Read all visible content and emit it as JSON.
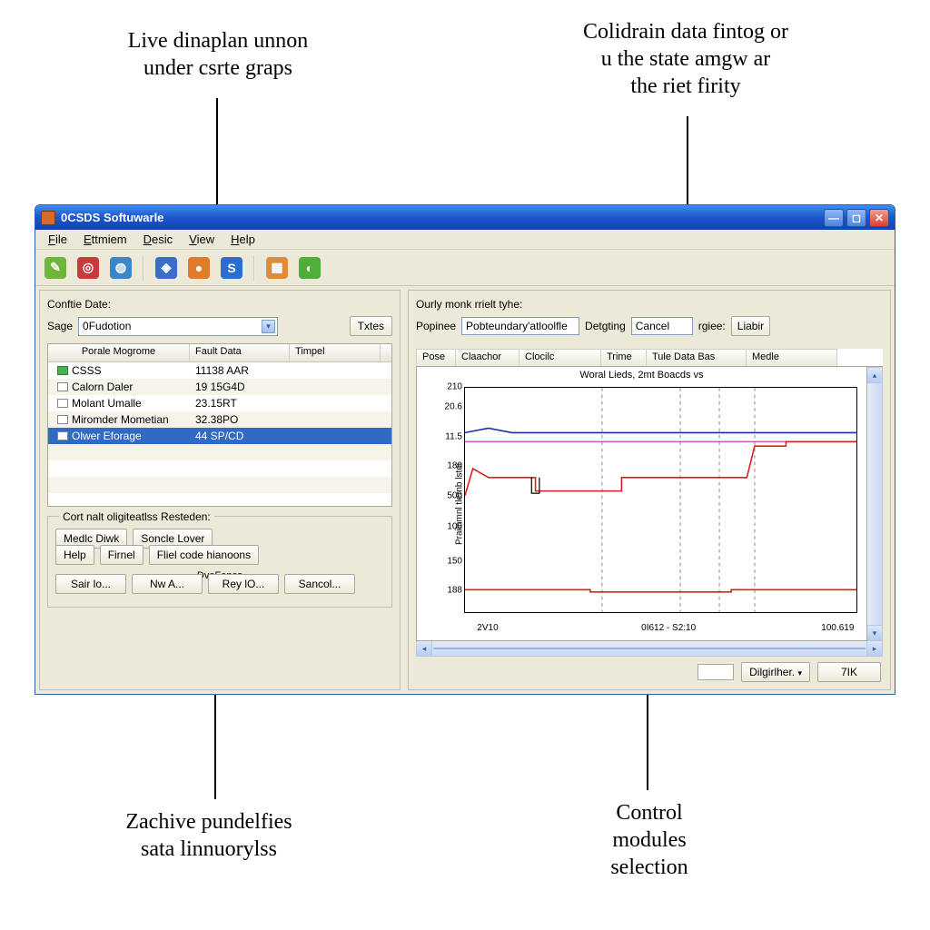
{
  "annotations": {
    "top_left": "Live dinaplan unnon\nunder csrte graps",
    "top_right": "Colidrain data fintog or\nu the state amgw ar\nthe riet firity",
    "bottom_left": "Zachive pundelfies\nsata linnuorylss",
    "bottom_right": "Control\nmodules\nselection",
    "dot_color_view": "#d84c1f",
    "dot_color_right": "#d84c1f",
    "dot_color_bl": "#d84c1f",
    "dot_color_br": "#d84c1f"
  },
  "window": {
    "title": "0CSDS Softuwarle"
  },
  "menu": {
    "file": "File",
    "ettmiem": "Ettmiem",
    "desic": "Desic",
    "view": "View",
    "help": "Help"
  },
  "toolbar_icons": [
    {
      "name": "paint-icon",
      "bg": "#6fb53a",
      "glyph": "✎"
    },
    {
      "name": "target-icon",
      "bg": "#c83a3a",
      "glyph": "◎"
    },
    {
      "name": "globe-icon",
      "bg": "#3a86c8",
      "glyph": "◍"
    },
    {
      "sep": true
    },
    {
      "name": "shield-icon",
      "bg": "#3a6ec8",
      "glyph": "◈"
    },
    {
      "name": "firefox-icon",
      "bg": "#e07b2a",
      "glyph": "●"
    },
    {
      "name": "sphere-icon",
      "bg": "#2a6fd0",
      "glyph": "S"
    },
    {
      "sep": true
    },
    {
      "name": "blocks-icon",
      "bg": "#e08b3a",
      "glyph": "▦"
    },
    {
      "name": "leaf-icon",
      "bg": "#4fae3a",
      "glyph": "◐"
    }
  ],
  "left": {
    "group": "Conftie Date:",
    "sage_label": "Sage",
    "sage_value": "0Fudotion",
    "txtes_btn": "Txtes",
    "cols": {
      "c1": "Porale Mogrome",
      "c2": "Fault Data",
      "c3": "Timpel"
    },
    "rows": [
      {
        "name": "CSSS",
        "fault": "11138 AAR",
        "icon": "green"
      },
      {
        "name": "Calorn Daler",
        "fault": "19 15G4D"
      },
      {
        "name": "Molant Umalle",
        "fault": "23.15RT"
      },
      {
        "name": "Miromder Mometian",
        "fault": "32.38PO"
      },
      {
        "name": "Olwer Eforage",
        "fault": "44 SP/CD",
        "sel": true
      }
    ],
    "sub_title": "Cort nalt oligiteatlss Resteden:",
    "btns1": [
      "Medlc Diwk",
      "Soncle Lover"
    ],
    "btns2": [
      "Help",
      "Firnel",
      "Fliel code hianoons"
    ],
    "devfenes": "DveFenes",
    "btns3": [
      "Sair lo...",
      "Nw A...",
      "Rey lO...",
      "Sancol..."
    ]
  },
  "right": {
    "group": "Ourly monk rrielt tyhe:",
    "popinee_label": "Popinee",
    "popinee_value": "Pobteundary'atloolfle",
    "detgting_label": "Detgting",
    "detgting_value": "Cancel",
    "rgiee_label": "rgiee:",
    "liabir_btn": "Liabir",
    "tabs": [
      "Pose",
      "Claachor",
      "Clocilc",
      "Trime",
      "Tule Data Bas",
      "Medle"
    ],
    "chart": {
      "title": "Woral Lieds, 2mt Boacds vs",
      "ylabel": "Prailnmnl tlernb lstoi",
      "yticks": [
        "210",
        "20.6",
        "11.5",
        "180",
        "500",
        "100",
        "150",
        "188"
      ],
      "ytick_pos": [
        0,
        9,
        22,
        35,
        48,
        62,
        77,
        90
      ],
      "xticks": [
        {
          "label": "2V10",
          "pos": 6
        },
        {
          "label": "0I612 - S2:10",
          "pos": 52
        },
        {
          "label": "100.619",
          "pos": 95
        }
      ],
      "gridv_pos": [
        35,
        55,
        65,
        74
      ],
      "series": [
        {
          "name": "blue",
          "color": "#1a2fb0",
          "points": [
            [
              0,
              20
            ],
            [
              6,
              18
            ],
            [
              12,
              20
            ],
            [
              100,
              20
            ]
          ],
          "width": 1.6
        },
        {
          "name": "magenta",
          "color": "#c23fbf",
          "points": [
            [
              0,
              24
            ],
            [
              100,
              24
            ]
          ],
          "width": 1.2
        },
        {
          "name": "red-upper",
          "color": "#d82020",
          "points": [
            [
              0,
              48
            ],
            [
              2,
              36
            ],
            [
              6,
              40
            ],
            [
              18,
              40
            ],
            [
              18,
              46
            ],
            [
              40,
              46
            ],
            [
              40,
              40
            ],
            [
              72,
              40
            ],
            [
              74,
              26
            ],
            [
              82,
              26
            ],
            [
              82,
              24
            ],
            [
              100,
              24
            ]
          ],
          "width": 1.6
        },
        {
          "name": "blackstep",
          "color": "#000",
          "points": [
            [
              17,
              40
            ],
            [
              17,
              47
            ],
            [
              19,
              47
            ],
            [
              19,
              40
            ]
          ],
          "width": 1.2
        },
        {
          "name": "red-lower",
          "color": "#d82020",
          "points": [
            [
              0,
              90
            ],
            [
              32,
              90
            ],
            [
              32,
              91
            ],
            [
              68,
              91
            ],
            [
              68,
              90
            ],
            [
              100,
              90
            ]
          ],
          "width": 1.6
        }
      ]
    },
    "digither": "Dilgirlher.",
    "sevenik": "7IK"
  }
}
